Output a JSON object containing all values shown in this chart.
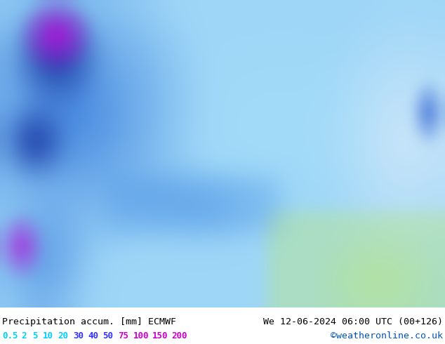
{
  "title_left": "Precipitation accum. [mm] ECMWF",
  "title_right": "We 12-06-2024 06:00 UTC (00+126)",
  "credit": "©weatheronline.co.uk",
  "colorbar_values": [
    "0.5",
    "2",
    "5",
    "10",
    "20",
    "30",
    "40",
    "50",
    "75",
    "100",
    "150",
    "200"
  ],
  "colorbar_text_colors": [
    "#00cfff",
    "#00cfff",
    "#00cfff",
    "#00cfff",
    "#00cfff",
    "#3333ff",
    "#3333ff",
    "#3333ff",
    "#cc00cc",
    "#cc00cc",
    "#cc00cc",
    "#cc00cc"
  ],
  "bg_color": "#ffffff",
  "fig_width": 6.34,
  "fig_height": 4.9,
  "dpi": 100
}
